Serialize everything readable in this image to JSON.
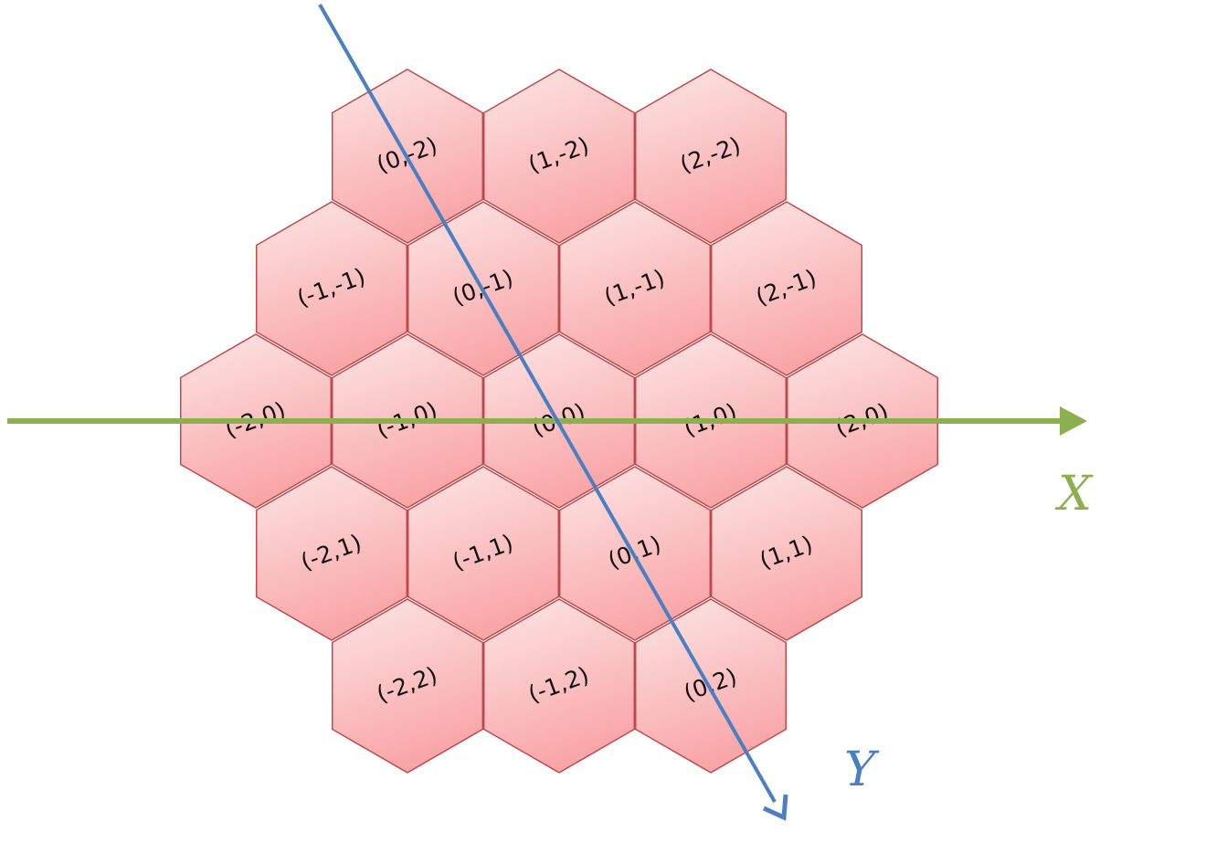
{
  "diagram": {
    "hex_fill_top": "#fde6e6",
    "hex_fill_bottom": "#f9a6a8",
    "hex_stroke": "#c0484a",
    "cells": [
      {
        "q": 0,
        "r": -2,
        "label": "(0,-2)"
      },
      {
        "q": 1,
        "r": -2,
        "label": "(1,-2)"
      },
      {
        "q": 2,
        "r": -2,
        "label": "(2,-2)"
      },
      {
        "q": -1,
        "r": -1,
        "label": "(-1,-1)"
      },
      {
        "q": 0,
        "r": -1,
        "label": "(0,-1)"
      },
      {
        "q": 1,
        "r": -1,
        "label": "(1,-1)"
      },
      {
        "q": 2,
        "r": -1,
        "label": "(2,-1)"
      },
      {
        "q": -2,
        "r": 0,
        "label": "(-2,0)"
      },
      {
        "q": -1,
        "r": 0,
        "label": "(-1,0)"
      },
      {
        "q": 0,
        "r": 0,
        "label": "(0,0)"
      },
      {
        "q": 1,
        "r": 0,
        "label": "(1,0)"
      },
      {
        "q": 2,
        "r": 0,
        "label": "(2,0)"
      },
      {
        "q": -2,
        "r": 1,
        "label": "(-2,1)"
      },
      {
        "q": -1,
        "r": 1,
        "label": "(-1,1)"
      },
      {
        "q": 0,
        "r": 1,
        "label": "(0,1)"
      },
      {
        "q": 1,
        "r": 1,
        "label": "(1,1)"
      },
      {
        "q": -2,
        "r": 2,
        "label": "(-2,2)"
      },
      {
        "q": -1,
        "r": 2,
        "label": "(-1,2)"
      },
      {
        "q": 0,
        "r": 2,
        "label": "(0,2)"
      }
    ],
    "x_axis": {
      "label": "X",
      "color": "#8db04e"
    },
    "y_axis": {
      "label": "Y",
      "color": "#4a7fc1"
    }
  }
}
